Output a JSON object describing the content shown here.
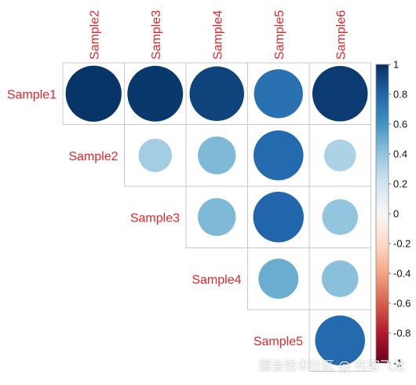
{
  "chart_data": {
    "type": "heatmap",
    "style": "correlation-matrix-upper-triangle-circles",
    "row_labels": [
      "Sample1",
      "Sample2",
      "Sample3",
      "Sample4",
      "Sample5"
    ],
    "col_labels": [
      "Sample2",
      "Sample3",
      "Sample4",
      "Sample5",
      "Sample6"
    ],
    "cells": [
      {
        "row": "Sample1",
        "col": "Sample2",
        "value": 0.98
      },
      {
        "row": "Sample1",
        "col": "Sample3",
        "value": 0.97
      },
      {
        "row": "Sample1",
        "col": "Sample4",
        "value": 0.93
      },
      {
        "row": "Sample1",
        "col": "Sample5",
        "value": 0.75
      },
      {
        "row": "Sample1",
        "col": "Sample6",
        "value": 0.96
      },
      {
        "row": "Sample2",
        "col": "Sample3",
        "value": 0.35
      },
      {
        "row": "Sample2",
        "col": "Sample4",
        "value": 0.45
      },
      {
        "row": "Sample2",
        "col": "Sample5",
        "value": 0.78
      },
      {
        "row": "Sample2",
        "col": "Sample6",
        "value": 0.32
      },
      {
        "row": "Sample3",
        "col": "Sample4",
        "value": 0.45
      },
      {
        "row": "Sample3",
        "col": "Sample5",
        "value": 0.8
      },
      {
        "row": "Sample3",
        "col": "Sample6",
        "value": 0.4
      },
      {
        "row": "Sample4",
        "col": "Sample5",
        "value": 0.5
      },
      {
        "row": "Sample4",
        "col": "Sample6",
        "value": 0.42
      },
      {
        "row": "Sample5",
        "col": "Sample6",
        "value": 0.78
      }
    ],
    "colorbar": {
      "ticks": [
        "1",
        "0.8",
        "0.6",
        "0.4",
        "0.2",
        "0",
        "-0.2",
        "-0.4",
        "-0.6",
        "-0.8",
        "-1"
      ],
      "range": [
        -1,
        1
      ],
      "colors": [
        "#67001f",
        "#b2182b",
        "#d6604d",
        "#f4a582",
        "#fddbc7",
        "#f7f7f7",
        "#d1e5f0",
        "#92c5de",
        "#4393c3",
        "#2166ac",
        "#053061"
      ]
    },
    "label_color": "#e3262b",
    "grid": true,
    "legend": "right"
  },
  "watermark": "掘金技术社区 @ 布客飞龙"
}
